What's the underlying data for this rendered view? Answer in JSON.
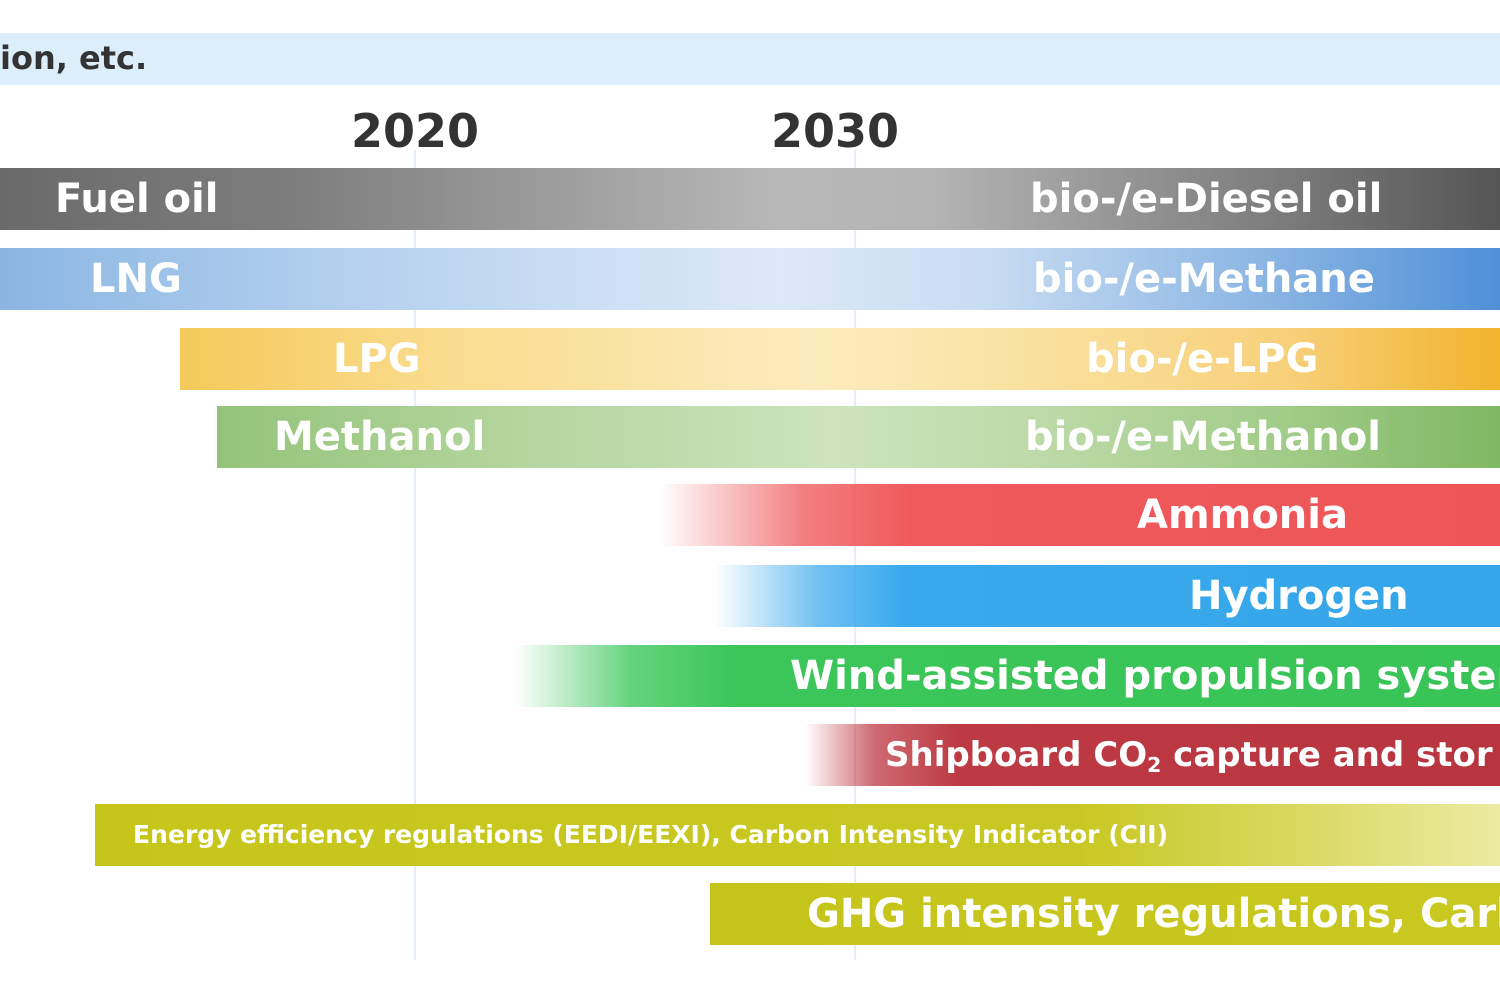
{
  "header_band": {
    "text": "ion, etc."
  },
  "timeline": {
    "years": [
      "2020",
      "2030"
    ]
  },
  "bars": [
    {
      "id": "fuel-oil",
      "left_label": "Fuel oil",
      "right_label": "bio-/e-Diesel oil"
    },
    {
      "id": "lng",
      "left_label": "LNG",
      "right_label": "bio-/e-Methane"
    },
    {
      "id": "lpg",
      "left_label": "LPG",
      "right_label": "bio-/e-LPG"
    },
    {
      "id": "methanol",
      "left_label": "Methanol",
      "right_label": "bio-/e-Methanol"
    },
    {
      "id": "ammonia",
      "label": "Ammonia"
    },
    {
      "id": "hydrogen",
      "label": "Hydrogen"
    },
    {
      "id": "wind",
      "label": "Wind-assisted propulsion systen"
    },
    {
      "id": "ccs",
      "label_before": "Shipboard CO",
      "label_sub": "2",
      "label_after": " capture and stor"
    },
    {
      "id": "eedi",
      "label": "Energy efficiency regulations (EEDI/EEXI), Carbon Intensity Indicator (CII)"
    },
    {
      "id": "ghg",
      "label": "GHG intensity regulations, Carb"
    }
  ],
  "colors": {
    "fuel_oil": "#7e7e7e",
    "lng": "#4f90d8",
    "lpg": "#f2b32d",
    "methanol": "#7fb862",
    "ammonia": "#ee5557",
    "hydrogen": "#36a6ea",
    "wind": "#39c457",
    "ccs": "#b83540",
    "regulations": "#c6c61a"
  }
}
